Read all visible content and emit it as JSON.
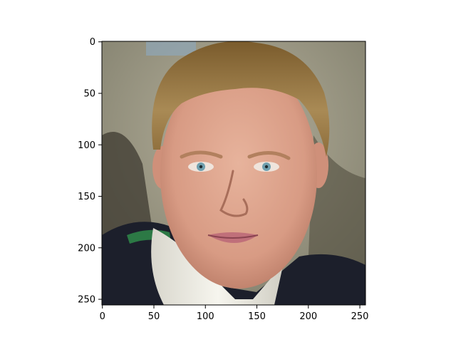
{
  "figure": {
    "description_type": "image-display-with-pixel-axes",
    "image_subject": "portrait photo",
    "colors": {
      "background": "#ffffff",
      "axis": "#000000",
      "photo_backdrop": "#9c9a86",
      "hair": "#9a7a42",
      "skin": "#e0a78f",
      "shirt": "#f1efe6",
      "jacket": "#1c1f2b",
      "eyes": "#6f9fae",
      "lips": "#c0707a"
    }
  },
  "chart_data": {
    "type": "image",
    "xlim": [
      0,
      255
    ],
    "ylim": [
      255,
      0
    ],
    "y_inverted": true,
    "x_ticks": [
      "0",
      "50",
      "100",
      "150",
      "200",
      "250"
    ],
    "y_ticks": [
      "0",
      "50",
      "100",
      "150",
      "200",
      "250"
    ],
    "x_tick_values": [
      0,
      50,
      100,
      150,
      200,
      250
    ],
    "y_tick_values": [
      0,
      50,
      100,
      150,
      200,
      250
    ]
  }
}
